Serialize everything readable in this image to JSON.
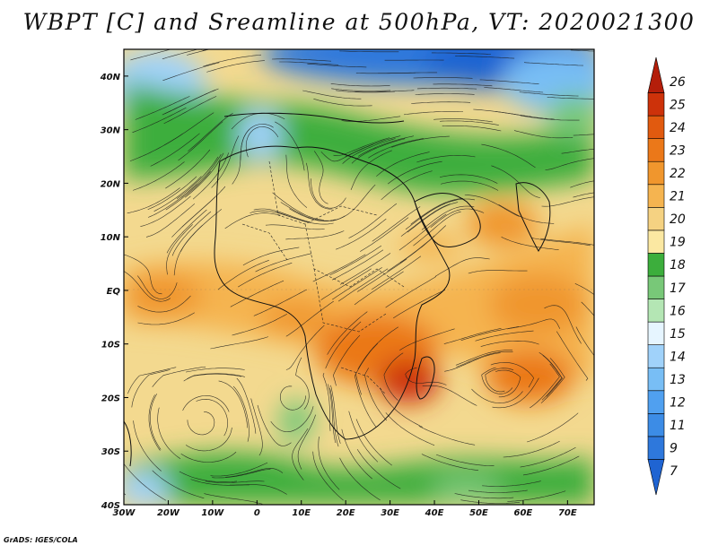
{
  "title": "WBPT [C] and Sreamline at 500hPa, VT: 2020021300",
  "credit": "GrADS: IGES/COLA",
  "map": {
    "lon_range": [
      -30,
      76
    ],
    "lat_range": [
      -40,
      45
    ],
    "lon_ticks": [
      "30W",
      "20W",
      "10W",
      "0",
      "10E",
      "20E",
      "30E",
      "40E",
      "50E",
      "60E",
      "70E"
    ],
    "lat_ticks": [
      "40S",
      "30S",
      "20S",
      "10S",
      "EQ",
      "10N",
      "20N",
      "30N",
      "40N"
    ]
  },
  "colorbar": {
    "labels": [
      "7",
      "9",
      "11",
      "12",
      "13",
      "14",
      "15",
      "16",
      "17",
      "18",
      "19",
      "20",
      "21",
      "22",
      "23",
      "24",
      "25",
      "26"
    ],
    "colors": [
      "#1f64d2",
      "#2e78dc",
      "#3c8ce6",
      "#50a0f0",
      "#78bef5",
      "#a0d2fa",
      "#e6f5ff",
      "#b4e6b4",
      "#78c878",
      "#3cae3c",
      "#fbe8a2",
      "#f5d282",
      "#f5b450",
      "#f0962d",
      "#eb7819",
      "#e15a0f",
      "#cd320a",
      "#b41e0a"
    ]
  }
}
